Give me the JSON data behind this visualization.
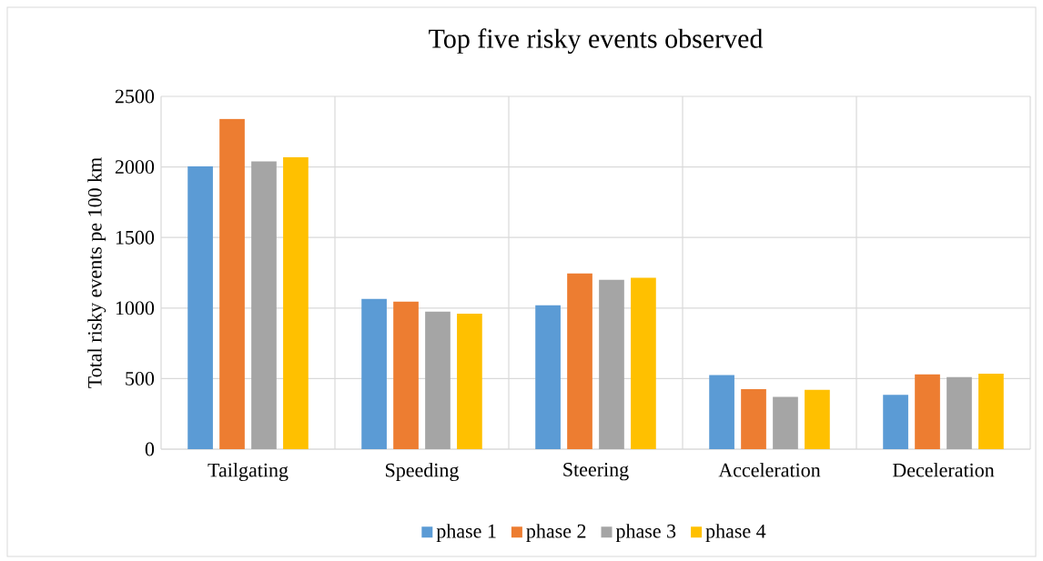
{
  "chart_data": {
    "type": "bar",
    "title": "Top five risky events observed",
    "ylabel": "Total risky events pe 100 km",
    "categories": [
      "Tailgating",
      "Speeding",
      "Steering",
      "Acceleration",
      "Deceleration"
    ],
    "series": [
      {
        "name": "phase 1",
        "color": "#5b9bd5",
        "values": [
          2005,
          1065,
          1020,
          525,
          385
        ]
      },
      {
        "name": "phase 2",
        "color": "#ed7d31",
        "values": [
          2340,
          1045,
          1245,
          425,
          530
        ]
      },
      {
        "name": "phase 3",
        "color": "#a5a5a5",
        "values": [
          2040,
          975,
          1200,
          370,
          510
        ]
      },
      {
        "name": "phase 4",
        "color": "#ffc000",
        "values": [
          2070,
          960,
          1215,
          420,
          535
        ]
      }
    ],
    "ylim": [
      0,
      2500
    ],
    "yticks": [
      0,
      500,
      1000,
      1500,
      2000,
      2500
    ],
    "grid": true,
    "legend": "bottom"
  }
}
